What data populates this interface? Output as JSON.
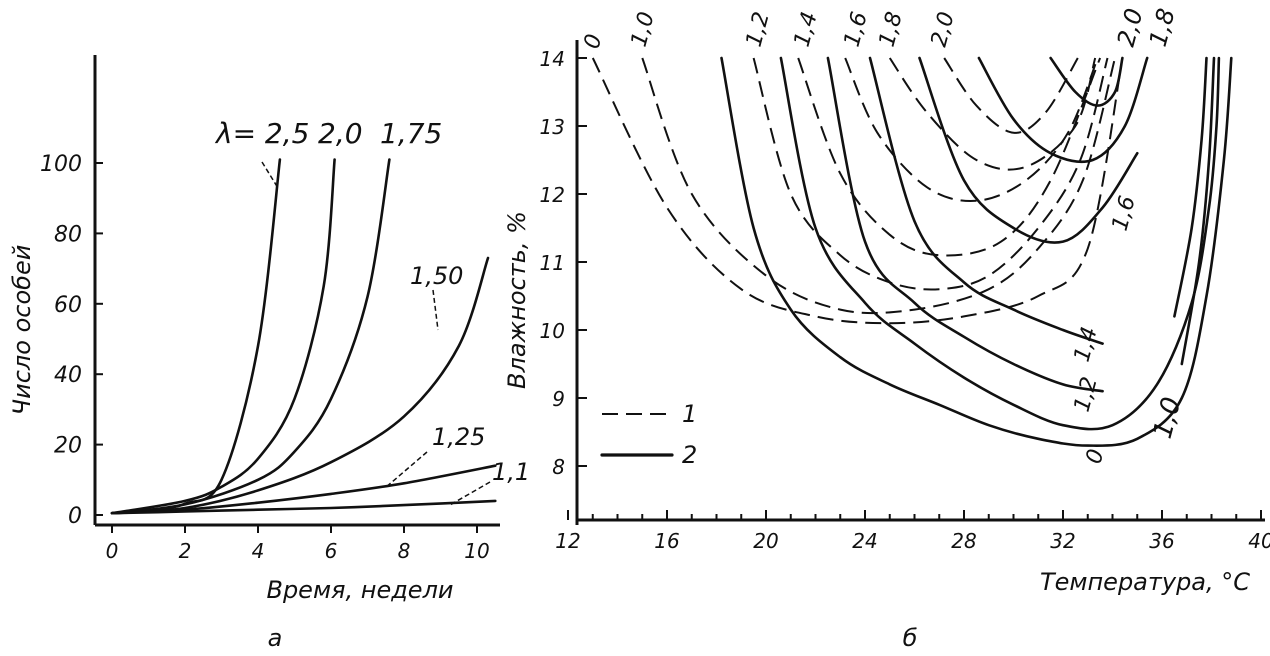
{
  "panel_labels": [
    "а",
    "б"
  ],
  "chart_data": [
    {
      "type": "line",
      "ylabel": "Число особей",
      "xlabel": "Время, недели",
      "xlim": [
        0,
        10.5
      ],
      "ylim": [
        0,
        100
      ],
      "x_ticks": [
        "0",
        "2",
        "4",
        "6",
        "8",
        "10"
      ],
      "y_ticks": [
        "0",
        "20",
        "40",
        "60",
        "80",
        "100"
      ],
      "series": [
        {
          "name": "λ= 2,5",
          "x": [
            0,
            1,
            2,
            3,
            4,
            4.6
          ],
          "y": [
            0.5,
            1.3,
            3.2,
            10,
            48,
            101
          ]
        },
        {
          "name": "2,0",
          "x": [
            0,
            2,
            3,
            4,
            5,
            5.8,
            6.1
          ],
          "y": [
            0.5,
            4,
            8,
            16,
            33,
            65,
            101
          ]
        },
        {
          "name": "1,75",
          "x": [
            0,
            2,
            4,
            5,
            6,
            7,
            7.6
          ],
          "y": [
            0.5,
            3,
            10,
            18,
            33,
            62,
            101
          ]
        },
        {
          "name": "1,50",
          "x": [
            0,
            2,
            4,
            6,
            8,
            9.5,
            10.3
          ],
          "y": [
            0.5,
            2,
            7,
            15,
            28,
            48,
            73
          ]
        },
        {
          "name": "1,25",
          "x": [
            0,
            2,
            4,
            6,
            8,
            10.5
          ],
          "y": [
            0.5,
            1.5,
            3.5,
            6,
            9,
            14
          ]
        },
        {
          "name": "1,1",
          "x": [
            0,
            2,
            4,
            6,
            8,
            10.5
          ],
          "y": [
            0.5,
            1,
            1.5,
            2,
            2.8,
            4
          ]
        }
      ]
    },
    {
      "type": "line",
      "ylabel": "Влажность, %",
      "xlabel": "Температура, °С",
      "xlim": [
        12,
        40
      ],
      "ylim": [
        7.5,
        14.2
      ],
      "x_ticks": [
        "12",
        "16",
        "20",
        "24",
        "28",
        "32",
        "36",
        "40"
      ],
      "y_ticks": [
        "8",
        "9",
        "10",
        "11",
        "12",
        "13",
        "14"
      ],
      "legend": [
        {
          "label": "1",
          "style": "dashed"
        },
        {
          "label": "2",
          "style": "solid"
        }
      ],
      "series": [
        {
          "name": "0",
          "group": "1",
          "x": [
            13,
            16,
            19,
            22,
            25,
            28,
            31,
            33,
            34.4
          ],
          "y": [
            14,
            11.8,
            10.6,
            10.2,
            10.1,
            10.2,
            10.5,
            11.2,
            14
          ]
        },
        {
          "name": "1,0",
          "group": "1",
          "x": [
            15,
            17,
            20,
            23,
            26,
            29,
            31,
            32.8,
            34.1
          ],
          "y": [
            14,
            12,
            10.8,
            10.3,
            10.3,
            10.6,
            11.2,
            12.2,
            14
          ]
        },
        {
          "name": "1,2",
          "group": "1",
          "x": [
            19.5,
            21,
            23,
            25,
            27,
            29,
            31,
            32.7,
            33.8
          ],
          "y": [
            14,
            12,
            11.1,
            10.7,
            10.6,
            10.8,
            11.5,
            12.5,
            14
          ]
        },
        {
          "name": "1,4",
          "group": "1",
          "x": [
            21.3,
            23,
            25,
            27,
            29.5,
            31.5,
            33.5
          ],
          "y": [
            14,
            12.3,
            11.4,
            11.1,
            11.3,
            12.2,
            14
          ]
        },
        {
          "name": "1,6",
          "group": "1",
          "x": [
            23.2,
            24.5,
            26.5,
            28.5,
            30.5,
            32.2,
            33.4
          ],
          "y": [
            14,
            12.9,
            12.1,
            11.9,
            12.2,
            12.9,
            14
          ]
        },
        {
          "name": "1,8",
          "group": "1",
          "x": [
            25,
            26.5,
            28.5,
            30.5,
            32.5,
            33.3
          ],
          "y": [
            14,
            13.2,
            12.5,
            12.4,
            13,
            14
          ]
        },
        {
          "name": "2,0",
          "group": "1",
          "x": [
            27.2,
            28.5,
            30,
            31.3,
            32.6
          ],
          "y": [
            14,
            13.3,
            12.9,
            13.2,
            14
          ]
        },
        {
          "name": "2,0",
          "group": "2",
          "x": [
            31.5,
            32.5,
            33.4,
            34.1,
            34.4
          ],
          "y": [
            14,
            13.5,
            13.3,
            13.5,
            14
          ]
        },
        {
          "name": "1,8",
          "group": "2",
          "x": [
            28.6,
            30,
            31.5,
            33.2,
            34.5,
            35.4
          ],
          "y": [
            14,
            13.1,
            12.6,
            12.5,
            13,
            14
          ]
        },
        {
          "name": "1,6",
          "group": "2",
          "x": [
            26.2,
            28,
            30,
            32,
            33.6,
            35
          ],
          "y": [
            14,
            12.2,
            11.5,
            11.3,
            11.8,
            12.6
          ]
        },
        {
          "name": "1,4",
          "group": "2",
          "x": [
            24.2,
            26,
            28,
            30,
            32,
            33.6
          ],
          "y": [
            14,
            11.6,
            10.7,
            10.3,
            10,
            9.8
          ]
        },
        {
          "name": "1,2",
          "group": "2",
          "x": [
            22.5,
            24,
            26,
            28,
            30,
            32,
            33.6
          ],
          "y": [
            14,
            11.3,
            10.4,
            9.9,
            9.5,
            9.2,
            9.1
          ]
        },
        {
          "name": "1,0",
          "group": "2",
          "x": [
            20.6,
            22,
            24,
            26,
            28,
            30,
            32,
            34,
            35.8,
            37.2,
            37.9,
            38.2,
            38.3
          ],
          "y": [
            14,
            11.5,
            10.4,
            9.8,
            9.3,
            8.9,
            8.6,
            8.6,
            9.2,
            10.4,
            11.8,
            13,
            14
          ]
        },
        {
          "name": "0",
          "group": "2",
          "x": [
            18.2,
            19.5,
            21,
            23,
            25,
            27,
            29,
            31,
            33,
            35,
            36.8,
            37.8,
            38.5,
            38.8
          ],
          "y": [
            14,
            11.5,
            10.3,
            9.6,
            9.2,
            8.9,
            8.6,
            8.4,
            8.3,
            8.4,
            9,
            10.5,
            12.5,
            14
          ]
        },
        {
          "name": "",
          "group": "2",
          "x": [
            36.5,
            37.2,
            37.6,
            37.8
          ],
          "y": [
            10.2,
            11.5,
            12.8,
            14
          ]
        },
        {
          "name": "",
          "group": "2",
          "x": [
            36.8,
            37.5,
            37.9,
            38.1
          ],
          "y": [
            9.5,
            11,
            12.5,
            14
          ]
        }
      ]
    }
  ]
}
